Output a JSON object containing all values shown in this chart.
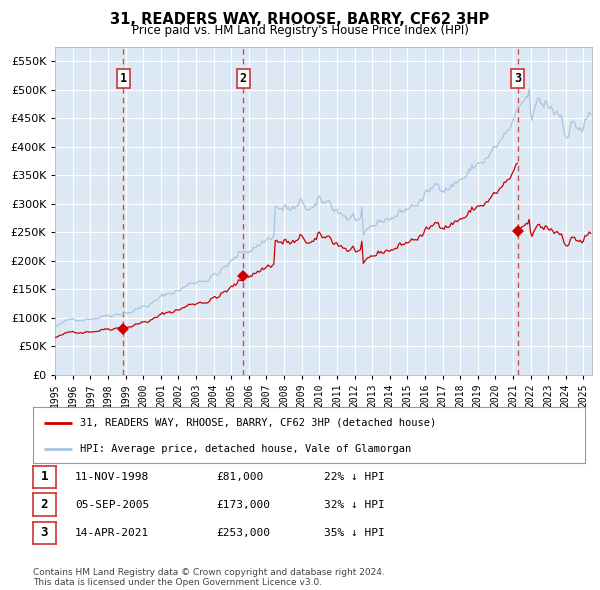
{
  "title": "31, READERS WAY, RHOOSE, BARRY, CF62 3HP",
  "subtitle": "Price paid vs. HM Land Registry's House Price Index (HPI)",
  "hpi_label": "HPI: Average price, detached house, Vale of Glamorgan",
  "property_label": "31, READERS WAY, RHOOSE, BARRY, CF62 3HP (detached house)",
  "purchases": [
    {
      "num": 1,
      "date": "11-NOV-1998",
      "price": 81000,
      "pct": "22%",
      "dir": "↓"
    },
    {
      "num": 2,
      "date": "05-SEP-2005",
      "price": 173000,
      "pct": "32%",
      "dir": "↓"
    },
    {
      "num": 3,
      "date": "14-APR-2021",
      "price": 253000,
      "pct": "35%",
      "dir": "↓"
    }
  ],
  "purchase_dates_decimal": [
    1998.87,
    2005.68,
    2021.28
  ],
  "purchase_prices": [
    81000,
    173000,
    253000
  ],
  "ylim": [
    0,
    575000
  ],
  "yticks": [
    0,
    50000,
    100000,
    150000,
    200000,
    250000,
    300000,
    350000,
    400000,
    450000,
    500000,
    550000
  ],
  "background_color": "#ffffff",
  "plot_bg_color": "#dce9f5",
  "hpi_color": "#aac4e0",
  "property_color": "#cc0000",
  "dashed_line_color": "#cc3333",
  "grid_color": "#cccccc",
  "footnote": "Contains HM Land Registry data © Crown copyright and database right 2024.\nThis data is licensed under the Open Government Licence v3.0.",
  "xstart": 1995.0,
  "xend": 2025.5
}
